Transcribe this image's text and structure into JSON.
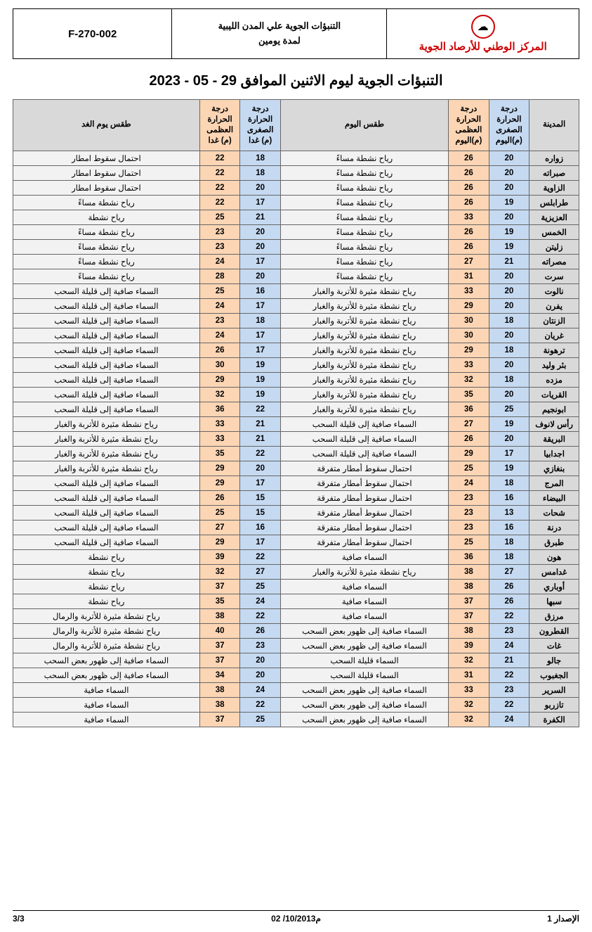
{
  "header": {
    "form_code": "F-270-002",
    "center_line1": "التنبؤات الجوية علي المدن الليبية",
    "center_line2": "لمدة يومين",
    "org_name": "المركز الوطني للأرصاد الجوية",
    "logo_glyph": "☁"
  },
  "title": "التنبؤات الجوية ليوم الاثنين الموافق 29 - 05 - 2023",
  "columns": {
    "city": "المدينة",
    "min_today": "درجة الحرارة الصغرى (م)اليوم",
    "max_today": "درجة الحرارة العظمى (م)اليوم",
    "cond_today": "طقس اليوم",
    "min_tom": "درجة الحرارة الصغرى (م) غدا",
    "max_tom": "درجة الحرارة العظمى (م) غدا",
    "cond_tom": "طقس يوم الغد"
  },
  "colors": {
    "header_gray": "#d9d9d9",
    "min_blue": "#c5d9f1",
    "max_orange": "#fcd5b4",
    "row_gray": "#f2f2f2",
    "org_red": "#c00000"
  },
  "rows": [
    {
      "city": "زواره",
      "min1": 20,
      "max1": 26,
      "c1": "رياح نشطة مساءً",
      "min2": 18,
      "max2": 22,
      "c2": "احتمال سقوط امطار"
    },
    {
      "city": "صبراته",
      "min1": 20,
      "max1": 26,
      "c1": "رياح نشطة مساءً",
      "min2": 18,
      "max2": 22,
      "c2": "احتمال سقوط امطار"
    },
    {
      "city": "الزاوية",
      "min1": 20,
      "max1": 26,
      "c1": "رياح نشطة مساءً",
      "min2": 20,
      "max2": 22,
      "c2": "احتمال سقوط امطار"
    },
    {
      "city": "طرابلس",
      "min1": 19,
      "max1": 26,
      "c1": "رياح نشطة مساءً",
      "min2": 17,
      "max2": 22,
      "c2": "رياح نشطة مساءً"
    },
    {
      "city": "العزيزية",
      "min1": 20,
      "max1": 33,
      "c1": "رياح نشطة مساءً",
      "min2": 21,
      "max2": 25,
      "c2": "رياح نشطة"
    },
    {
      "city": "الخمس",
      "min1": 19,
      "max1": 26,
      "c1": "رياح نشطة مساءً",
      "min2": 20,
      "max2": 23,
      "c2": "رياح نشطة مساءً"
    },
    {
      "city": "زليتن",
      "min1": 19,
      "max1": 26,
      "c1": "رياح نشطة مساءً",
      "min2": 20,
      "max2": 23,
      "c2": "رياح نشطة مساءً"
    },
    {
      "city": "مصراته",
      "min1": 21,
      "max1": 27,
      "c1": "رياح نشطة مساءً",
      "min2": 17,
      "max2": 24,
      "c2": "رياح نشطة مساءً"
    },
    {
      "city": "سرت",
      "min1": 20,
      "max1": 31,
      "c1": "رياح نشطة مساءً",
      "min2": 20,
      "max2": 28,
      "c2": "رياح نشطة مساءً"
    },
    {
      "city": "نالوت",
      "min1": 20,
      "max1": 33,
      "c1": "رياح نشطة مثيرة للأتربة والغبار",
      "min2": 16,
      "max2": 25,
      "c2": "السماء صافية إلى قليلة السحب"
    },
    {
      "city": "يفرن",
      "min1": 20,
      "max1": 29,
      "c1": "رياح نشطة مثيرة للأتربة والغبار",
      "min2": 17,
      "max2": 24,
      "c2": "السماء صافية إلى قليلة السحب"
    },
    {
      "city": "الزنتان",
      "min1": 18,
      "max1": 30,
      "c1": "رياح نشطة مثيرة للأتربة والغبار",
      "min2": 18,
      "max2": 23,
      "c2": "السماء صافية إلى قليلة السحب"
    },
    {
      "city": "غريان",
      "min1": 20,
      "max1": 30,
      "c1": "رياح نشطة مثيرة للأتربة والغبار",
      "min2": 17,
      "max2": 24,
      "c2": "السماء صافية إلى قليلة السحب"
    },
    {
      "city": "ترهونة",
      "min1": 18,
      "max1": 29,
      "c1": "رياح نشطة مثيرة للأتربة والغبار",
      "min2": 17,
      "max2": 26,
      "c2": "السماء صافية إلى قليلة السحب"
    },
    {
      "city": "بئر وليد",
      "min1": 20,
      "max1": 33,
      "c1": "رياح نشطة مثيرة للأتربة والغبار",
      "min2": 19,
      "max2": 30,
      "c2": "السماء صافية إلى قليلة السحب"
    },
    {
      "city": "مزده",
      "min1": 18,
      "max1": 32,
      "c1": "رياح نشطة مثيرة للأتربة والغبار",
      "min2": 19,
      "max2": 29,
      "c2": "السماء صافية إلى قليلة السحب"
    },
    {
      "city": "القريات",
      "min1": 20,
      "max1": 35,
      "c1": "رياح نشطة مثيرة للأتربة والغبار",
      "min2": 19,
      "max2": 32,
      "c2": "السماء صافية إلى قليلة السحب"
    },
    {
      "city": "ابونجيم",
      "min1": 25,
      "max1": 36,
      "c1": "رياح نشطة مثيرة للأتربة والغبار",
      "min2": 22,
      "max2": 36,
      "c2": "السماء صافية إلى قليلة السحب"
    },
    {
      "city": "رأس لانوف",
      "min1": 19,
      "max1": 27,
      "c1": "السماء صافية إلى قليلة السحب",
      "min2": 21,
      "max2": 33,
      "c2": "رياح نشطة مثيرة للأتربة والغبار"
    },
    {
      "city": "البريقة",
      "min1": 20,
      "max1": 26,
      "c1": "السماء صافية إلى قليلة السحب",
      "min2": 21,
      "max2": 33,
      "c2": "رياح نشطة مثيرة للأتربة والغبار"
    },
    {
      "city": "اجدابيا",
      "min1": 17,
      "max1": 29,
      "c1": "السماء صافية إلى قليلة السحب",
      "min2": 22,
      "max2": 35,
      "c2": "رياح نشطة مثيرة للأتربة والغبار"
    },
    {
      "city": "بنغازي",
      "min1": 19,
      "max1": 25,
      "c1": "احتمال سقوط أمطار متفرقة",
      "min2": 20,
      "max2": 29,
      "c2": "رياح نشطة مثيرة للأتربة والغبار"
    },
    {
      "city": "المرج",
      "min1": 18,
      "max1": 24,
      "c1": "احتمال سقوط أمطار متفرقة",
      "min2": 17,
      "max2": 29,
      "c2": "السماء صافية إلى قليلة السحب"
    },
    {
      "city": "البيضاء",
      "min1": 16,
      "max1": 23,
      "c1": "احتمال سقوط أمطار متفرقة",
      "min2": 15,
      "max2": 26,
      "c2": "السماء صافية إلى قليلة السحب"
    },
    {
      "city": "شحات",
      "min1": 13,
      "max1": 23,
      "c1": "احتمال سقوط أمطار متفرقة",
      "min2": 15,
      "max2": 25,
      "c2": "السماء صافية إلى قليلة السحب"
    },
    {
      "city": "درنة",
      "min1": 16,
      "max1": 23,
      "c1": "احتمال سقوط أمطار متفرقة",
      "min2": 16,
      "max2": 27,
      "c2": "السماء صافية إلى قليلة السحب"
    },
    {
      "city": "طبرق",
      "min1": 18,
      "max1": 25,
      "c1": "احتمال سقوط أمطار متفرقة",
      "min2": 17,
      "max2": 29,
      "c2": "السماء صافية إلى قليلة السحب"
    },
    {
      "city": "هون",
      "min1": 18,
      "max1": 36,
      "c1": "السماء صافية",
      "min2": 22,
      "max2": 39,
      "c2": "رياح نشطة"
    },
    {
      "city": "غدامس",
      "min1": 27,
      "max1": 38,
      "c1": "رياح نشطة مثيرة للأتربة والغبار",
      "min2": 27,
      "max2": 32,
      "c2": "رياح نشطة"
    },
    {
      "city": "أوباري",
      "min1": 26,
      "max1": 38,
      "c1": "السماء صافية",
      "min2": 25,
      "max2": 37,
      "c2": "رياح نشطة"
    },
    {
      "city": "سبها",
      "min1": 26,
      "max1": 37,
      "c1": "السماء صافية",
      "min2": 24,
      "max2": 35,
      "c2": "رياح نشطة"
    },
    {
      "city": "مرزق",
      "min1": 22,
      "max1": 37,
      "c1": "السماء صافية",
      "min2": 22,
      "max2": 38,
      "c2": "رياح نشطة مثيرة للأتربة والرمال"
    },
    {
      "city": "القطرون",
      "min1": 23,
      "max1": 38,
      "c1": "السماء صافية إلى ظهور بعض السحب",
      "min2": 26,
      "max2": 40,
      "c2": "رياح نشطة مثيرة للأتربة والرمال"
    },
    {
      "city": "غات",
      "min1": 24,
      "max1": 39,
      "c1": "السماء صافية إلى ظهور بعض السحب",
      "min2": 23,
      "max2": 37,
      "c2": "رياح نشطة مثيرة للأتربة والرمال"
    },
    {
      "city": "جالو",
      "min1": 21,
      "max1": 32,
      "c1": "السماء قليلة السحب",
      "min2": 20,
      "max2": 37,
      "c2": "السماء صافية إلى ظهور بعض السحب"
    },
    {
      "city": "الجغبوب",
      "min1": 22,
      "max1": 31,
      "c1": "السماء قليلة السحب",
      "min2": 20,
      "max2": 34,
      "c2": "السماء صافية إلى ظهور بعض السحب"
    },
    {
      "city": "السرير",
      "min1": 23,
      "max1": 33,
      "c1": "السماء صافية إلى ظهور بعض السحب",
      "min2": 24,
      "max2": 38,
      "c2": "السماء صافية"
    },
    {
      "city": "تازربو",
      "min1": 22,
      "max1": 32,
      "c1": "السماء صافية إلى ظهور بعض السحب",
      "min2": 22,
      "max2": 38,
      "c2": "السماء صافية"
    },
    {
      "city": "الكفرة",
      "min1": 24,
      "max1": 32,
      "c1": "السماء صافية إلى ظهور بعض السحب",
      "min2": 25,
      "max2": 37,
      "c2": "السماء صافية"
    }
  ],
  "footer": {
    "issue": "الإصدار 1",
    "date": "02 /10/2013م",
    "page": "3/3"
  }
}
